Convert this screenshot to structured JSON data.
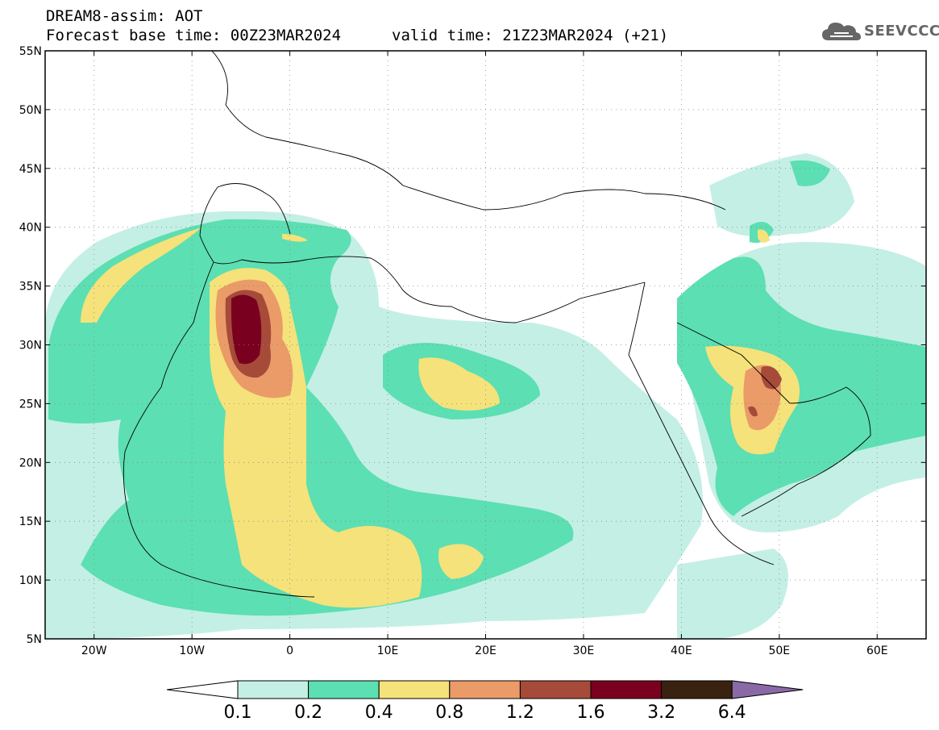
{
  "header": {
    "title_line1": "DREAM8-assim: AOT",
    "title_line2": "Forecast base time: 00Z23MAR2024",
    "valid_time": "valid time: 21Z23MAR2024 (+21)",
    "logo_text": "SEEVCCC",
    "logo_icon": "cloud-icon"
  },
  "map": {
    "variable": "AOT",
    "lon_range": [
      -25,
      65
    ],
    "lat_range": [
      5,
      55
    ],
    "lat_labels": [
      "55N",
      "50N",
      "45N",
      "40N",
      "35N",
      "30N",
      "25N",
      "20N",
      "15N",
      "10N",
      "5N"
    ],
    "lon_labels": [
      "20W",
      "10W",
      "0",
      "10E",
      "20E",
      "30E",
      "40E",
      "50E",
      "60E"
    ]
  },
  "legend": {
    "levels": [
      "0.1",
      "0.2",
      "0.4",
      "0.8",
      "1.2",
      "1.6",
      "3.2",
      "6.4"
    ],
    "colors": [
      "#ffffff",
      "#c4efe5",
      "#5cdfb2",
      "#f5e27a",
      "#ea9b68",
      "#a64a3a",
      "#7a0020",
      "#3a2210",
      "#8a6aa6"
    ]
  }
}
